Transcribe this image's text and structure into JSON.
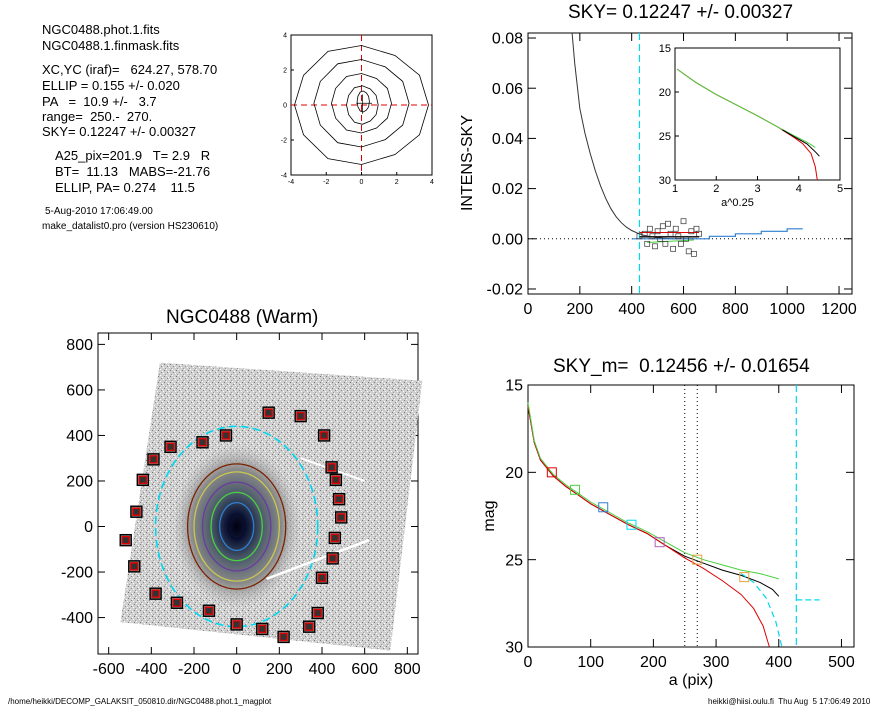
{
  "info": {
    "file1": "NGC0488.phot.1.fits",
    "file2": "NGC0488.1.finmask.fits",
    "xcyc": "XC,YC (iraf)=   624.27, 578.70",
    "ellip": "ELLIP = 0.155 +/- 0.020",
    "pa": "PA   =  10.9 +/-   3.7",
    "range": "range=  250.-  270.",
    "sky": "SKY= 0.12247 +/- 0.00327",
    "a25": "A25_pix=201.9   T= 2.9   R",
    "bt": "BT=  11.13   MABS=-21.76",
    "ellip_pa": "ELLIP, PA= 0.274    11.5",
    "date": "5-Aug-2010 17:06:49.00",
    "program": "make_datalist0.pro (version HS230610)"
  },
  "footer": {
    "left": "/home/heikki/DECOMP_GALAKSIT_050810.dir/NGC0488.phot.1_magplot",
    "right": "heikki@hiisi.oulu.fi  Thu Aug  5 17:06:49 2010"
  },
  "colors": {
    "cyan": "#00d8f0",
    "red": "#e00000",
    "green": "#4ccf40",
    "blue": "#2f7fd0",
    "orange": "#e8a040",
    "purple": "#b060c0"
  },
  "chart_data": [
    {
      "type": "contour",
      "xlim": [
        -4,
        4
      ],
      "ylim": [
        -4,
        4
      ],
      "xticks": [
        "-4",
        "-2",
        "0",
        "2",
        "4"
      ],
      "yticks": [
        "-4",
        "-2",
        "0",
        "2",
        "4"
      ],
      "contours": [
        {
          "cx": 0.0,
          "cy": 0.0,
          "rx": 3.8,
          "ry": 3.4
        },
        {
          "cx": 0.0,
          "cy": 0.1,
          "rx": 2.7,
          "ry": 2.5
        },
        {
          "cx": 0.0,
          "cy": 0.1,
          "rx": 1.7,
          "ry": 1.7
        },
        {
          "cx": 0.05,
          "cy": 0.0,
          "rx": 0.9,
          "ry": 1.1
        },
        {
          "cx": 0.1,
          "cy": 0.2,
          "rx": 0.35,
          "ry": 0.6
        }
      ]
    },
    {
      "type": "line",
      "title": "SKY= 0.12247 +/- 0.00327",
      "ylabel": "INTENS-SKY",
      "xlim": [
        0,
        1250
      ],
      "ylim": [
        -0.022,
        0.082
      ],
      "xticks": [
        "0",
        "200",
        "400",
        "600",
        "800",
        "1000",
        "1200"
      ],
      "yticks": [
        "0.08",
        "0.06",
        "0.04",
        "0.02",
        "0.00",
        "-0.02"
      ],
      "profile": [
        [
          170,
          0.082
        ],
        [
          180,
          0.07
        ],
        [
          200,
          0.052
        ],
        [
          220,
          0.042
        ],
        [
          240,
          0.034
        ],
        [
          260,
          0.027
        ],
        [
          280,
          0.021
        ],
        [
          300,
          0.016
        ],
        [
          320,
          0.012
        ],
        [
          340,
          0.0088
        ],
        [
          360,
          0.0064
        ],
        [
          380,
          0.0046
        ],
        [
          400,
          0.0033
        ],
        [
          420,
          0.0024
        ],
        [
          440,
          0.0016
        ],
        [
          460,
          0.0011
        ],
        [
          480,
          0.0007
        ],
        [
          500,
          0.0004
        ],
        [
          520,
          0.0002
        ],
        [
          540,
          0.0001
        ],
        [
          560,
          0.0
        ],
        [
          600,
          0.0
        ],
        [
          640,
          0.0
        ]
      ],
      "sky_points": [
        [
          430,
          0.001
        ],
        [
          450,
          0.002
        ],
        [
          460,
          -0.002
        ],
        [
          470,
          0.004
        ],
        [
          480,
          0.001
        ],
        [
          490,
          -0.003
        ],
        [
          500,
          0.003
        ],
        [
          510,
          0.0
        ],
        [
          520,
          0.005
        ],
        [
          530,
          -0.002
        ],
        [
          540,
          0.006
        ],
        [
          550,
          0.002
        ],
        [
          560,
          -0.004
        ],
        [
          570,
          0.004
        ],
        [
          580,
          0.001
        ],
        [
          590,
          -0.002
        ],
        [
          600,
          0.007
        ],
        [
          610,
          0.0
        ],
        [
          620,
          -0.005
        ],
        [
          630,
          0.003
        ],
        [
          640,
          -0.006
        ],
        [
          650,
          0.004
        ],
        [
          660,
          0.002
        ]
      ],
      "blue_steps": [
        [
          400,
          0.0
        ],
        [
          700,
          0.0
        ],
        [
          700,
          0.001
        ],
        [
          800,
          0.001
        ],
        [
          800,
          0.002
        ],
        [
          900,
          0.002
        ],
        [
          900,
          0.003
        ],
        [
          1000,
          0.003
        ],
        [
          1000,
          0.004
        ],
        [
          1060,
          0.004
        ]
      ],
      "vline": 430
    },
    {
      "type": "line",
      "xlabel": "a^0.25",
      "xlim": [
        1,
        5
      ],
      "ylim": [
        15,
        30
      ],
      "xticks": [
        "1",
        "2",
        "3",
        "4",
        "5"
      ],
      "yticks": [
        "15",
        "20",
        "25",
        "30"
      ],
      "series": [
        {
          "color": "red",
          "points": [
            [
              1.05,
              17.4
            ],
            [
              1.5,
              18.9
            ],
            [
              2.0,
              20.3
            ],
            [
              2.5,
              21.5
            ],
            [
              3.0,
              22.7
            ],
            [
              3.5,
              24.0
            ],
            [
              3.9,
              25.2
            ],
            [
              4.1,
              25.9
            ],
            [
              4.3,
              27.0
            ],
            [
              4.4,
              28.5
            ],
            [
              4.45,
              30.0
            ]
          ]
        },
        {
          "color": "green",
          "points": [
            [
              1.05,
              17.4
            ],
            [
              1.5,
              18.9
            ],
            [
              2.0,
              20.3
            ],
            [
              2.5,
              21.5
            ],
            [
              3.0,
              22.7
            ],
            [
              3.5,
              24.0
            ],
            [
              3.9,
              25.0
            ],
            [
              4.2,
              25.7
            ],
            [
              4.4,
              26.3
            ]
          ]
        },
        {
          "color": "black",
          "points": [
            [
              3.6,
              24.3
            ],
            [
              3.9,
              25.1
            ],
            [
              4.2,
              25.9
            ],
            [
              4.4,
              26.8
            ],
            [
              4.5,
              27.3
            ]
          ]
        }
      ]
    },
    {
      "type": "image",
      "title": "NGC0488 (Warm)",
      "xlim": [
        -650,
        850
      ],
      "ylim": [
        -560,
        850
      ],
      "xticks": [
        "-600",
        "-400",
        "-200",
        "0",
        "200",
        "400",
        "600",
        "800"
      ],
      "yticks": [
        "800",
        "600",
        "400",
        "200",
        "0",
        "-200",
        "-400"
      ],
      "ellipses": [
        {
          "color": "cyan",
          "rx": 380,
          "ry": 440,
          "dashed": true
        },
        {
          "color": "#7a2200",
          "rx": 230,
          "ry": 275
        },
        {
          "color": "#c8c850",
          "rx": 200,
          "ry": 240
        },
        {
          "color": "#6a3aa0",
          "rx": 160,
          "ry": 195
        },
        {
          "color": "green",
          "rx": 120,
          "ry": 150
        },
        {
          "color": "blue",
          "rx": 80,
          "ry": 105
        },
        {
          "color": "#0a0a30",
          "rx": 40,
          "ry": 55
        }
      ],
      "boxes": [
        [
          -50,
          400
        ],
        [
          150,
          500
        ],
        [
          300,
          485
        ],
        [
          410,
          400
        ],
        [
          -160,
          370
        ],
        [
          -310,
          350
        ],
        [
          -390,
          295
        ],
        [
          -440,
          205
        ],
        [
          -470,
          65
        ],
        [
          -520,
          -60
        ],
        [
          -480,
          -175
        ],
        [
          -380,
          -295
        ],
        [
          -280,
          -335
        ],
        [
          -130,
          -370
        ],
        [
          0,
          -430
        ],
        [
          120,
          -450
        ],
        [
          220,
          -485
        ],
        [
          340,
          -440
        ],
        [
          380,
          -380
        ],
        [
          400,
          -225
        ],
        [
          450,
          -140
        ],
        [
          460,
          -50
        ],
        [
          490,
          40
        ],
        [
          480,
          120
        ],
        [
          465,
          205
        ],
        [
          445,
          260
        ]
      ]
    },
    {
      "type": "line",
      "title": "SKY_m=  0.12456 +/- 0.01654",
      "xlabel": "a (pix)",
      "ylabel": "mag",
      "xlim": [
        0,
        520
      ],
      "ylim": [
        15,
        30
      ],
      "xticks": [
        "0",
        "100",
        "200",
        "300",
        "400",
        "500"
      ],
      "yticks": [
        "15",
        "20",
        "25",
        "30"
      ],
      "vlines_dotted": [
        250,
        270
      ],
      "vline_cyan": 428,
      "sky_level": 27.3,
      "series": [
        {
          "color": "black",
          "points": [
            [
              0,
              16.2
            ],
            [
              10,
              18.3
            ],
            [
              20,
              19.3
            ],
            [
              40,
              20.2
            ],
            [
              60,
              20.8
            ],
            [
              80,
              21.3
            ],
            [
              100,
              21.8
            ],
            [
              130,
              22.4
            ],
            [
              160,
              23.0
            ],
            [
              190,
              23.5
            ],
            [
              220,
              24.2
            ],
            [
              250,
              24.8
            ],
            [
              280,
              25.2
            ],
            [
              310,
              25.6
            ],
            [
              340,
              25.9
            ],
            [
              370,
              26.3
            ],
            [
              390,
              26.7
            ],
            [
              400,
              27.1
            ]
          ]
        },
        {
          "color": "red",
          "points": [
            [
              0,
              16.2
            ],
            [
              10,
              18.3
            ],
            [
              20,
              19.3
            ],
            [
              40,
              20.2
            ],
            [
              60,
              20.8
            ],
            [
              80,
              21.3
            ],
            [
              100,
              21.8
            ],
            [
              130,
              22.4
            ],
            [
              160,
              23.0
            ],
            [
              190,
              23.5
            ],
            [
              220,
              24.2
            ],
            [
              250,
              24.9
            ],
            [
              280,
              25.5
            ],
            [
              310,
              26.2
            ],
            [
              340,
              27.0
            ],
            [
              360,
              27.8
            ],
            [
              375,
              28.8
            ],
            [
              385,
              30.0
            ]
          ]
        },
        {
          "color": "green",
          "points": [
            [
              0,
              16.0
            ],
            [
              10,
              18.2
            ],
            [
              20,
              19.2
            ],
            [
              40,
              20.1
            ],
            [
              60,
              20.7
            ],
            [
              80,
              21.2
            ],
            [
              100,
              21.7
            ],
            [
              130,
              22.3
            ],
            [
              160,
              22.9
            ],
            [
              190,
              23.4
            ],
            [
              220,
              24.0
            ],
            [
              250,
              24.6
            ],
            [
              280,
              25.0
            ],
            [
              310,
              25.3
            ],
            [
              340,
              25.6
            ],
            [
              370,
              25.8
            ],
            [
              400,
              26.1
            ]
          ]
        },
        {
          "color": "cyan",
          "dashed": true,
          "points": [
            [
              340,
              25.8
            ],
            [
              360,
              26.3
            ],
            [
              380,
              27.2
            ],
            [
              395,
              28.5
            ],
            [
              405,
              30.0
            ]
          ]
        }
      ],
      "boxes": [
        [
          38,
          20.0,
          "red"
        ],
        [
          75,
          21.0,
          "green"
        ],
        [
          120,
          22.0,
          "blue"
        ],
        [
          165,
          23.0,
          "cyan"
        ],
        [
          210,
          24.0,
          "purple"
        ],
        [
          270,
          25.0,
          "orange"
        ],
        [
          345,
          26.0,
          "orange"
        ]
      ]
    }
  ]
}
